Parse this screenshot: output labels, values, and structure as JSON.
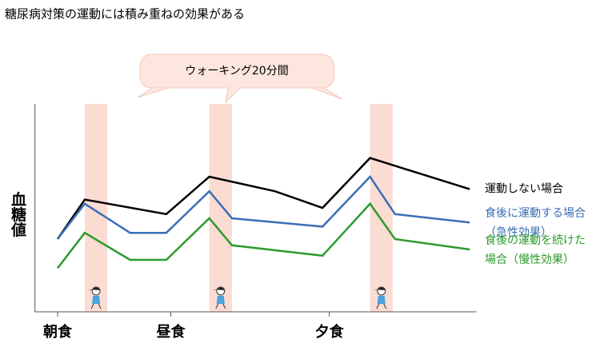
{
  "chart_data": {
    "type": "line",
    "title": "糖尿病対策の運動には積み重ねの効果がある",
    "y_label": "血糖値",
    "callout": "ウォーキング20分間",
    "xlim": [
      6,
      25.5
    ],
    "ylim": [
      0,
      100
    ],
    "xticks": [
      {
        "value": 7,
        "label": "朝食"
      },
      {
        "value": 12,
        "label": "昼食"
      },
      {
        "value": 19,
        "label": "夕食"
      }
    ],
    "highlights": [
      [
        8.2,
        9.2
      ],
      [
        13.7,
        14.7
      ],
      [
        20.8,
        21.8
      ]
    ],
    "highlight_color": "#fbdcd3",
    "series": [
      {
        "name": [
          "運動しない場合"
        ],
        "color": "#000000",
        "x": [
          7.0,
          8.2,
          11.8,
          13.7,
          16.6,
          18.7,
          20.8,
          25.2
        ],
        "values": [
          35,
          54,
          47,
          65,
          58,
          50,
          74,
          59
        ]
      },
      {
        "name": [
          "食後に運動する場合",
          "（急性効果）"
        ],
        "color": "#3a6fb5",
        "x": [
          7.0,
          8.2,
          10.2,
          11.8,
          13.7,
          14.7,
          18.7,
          20.8,
          21.9,
          25.2
        ],
        "values": [
          35,
          52,
          38,
          38,
          58,
          45,
          41,
          65,
          47,
          43
        ]
      },
      {
        "name": [
          "食後の運動を続けた",
          "場合（慢性効果）"
        ],
        "color": "#2e9a2e",
        "x": [
          7.0,
          8.2,
          10.2,
          11.8,
          13.7,
          14.7,
          18.7,
          20.8,
          21.9,
          25.2
        ],
        "values": [
          21,
          38,
          25,
          25,
          45,
          32,
          27,
          52,
          35,
          30
        ]
      }
    ]
  }
}
